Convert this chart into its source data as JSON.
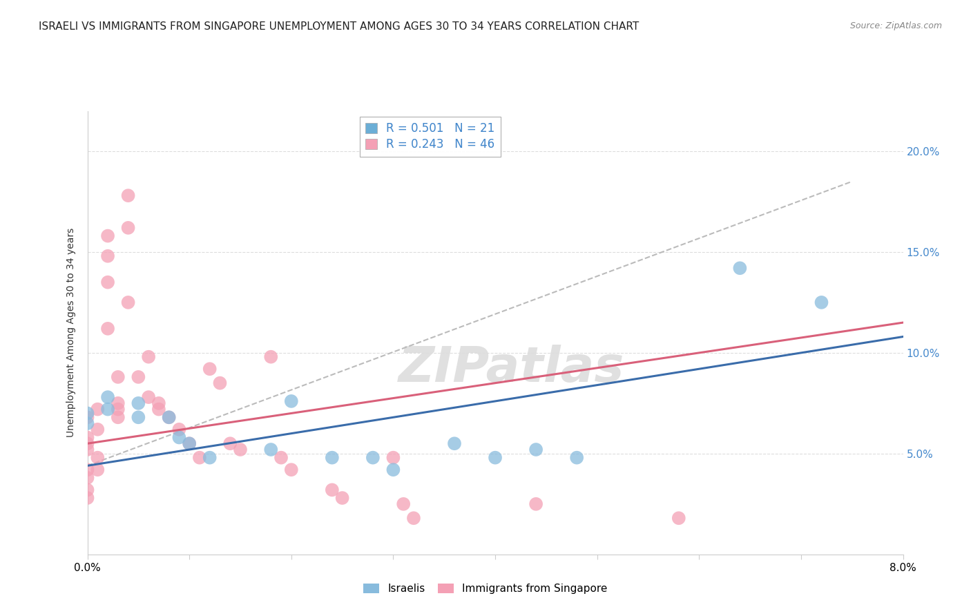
{
  "title": "ISRAELI VS IMMIGRANTS FROM SINGAPORE UNEMPLOYMENT AMONG AGES 30 TO 34 YEARS CORRELATION CHART",
  "source": "Source: ZipAtlas.com",
  "ylabel": "Unemployment Among Ages 30 to 34 years",
  "legend_items": [
    {
      "label": "R = 0.501   N = 21",
      "color": "#6baed6"
    },
    {
      "label": "R = 0.243   N = 46",
      "color": "#f4a0b5"
    }
  ],
  "legend_labels_bottom": [
    "Israelis",
    "Immigrants from Singapore"
  ],
  "xlim": [
    0.0,
    0.08
  ],
  "ylim": [
    0.0,
    0.22
  ],
  "xticks_show": [
    0.0,
    0.08
  ],
  "xticks_minor": [
    0.01,
    0.02,
    0.03,
    0.04,
    0.05,
    0.06,
    0.07
  ],
  "yticks_right": [
    0.05,
    0.1,
    0.15,
    0.2
  ],
  "watermark": "ZIPatlas",
  "blue_scatter": [
    [
      0.0,
      0.065
    ],
    [
      0.0,
      0.07
    ],
    [
      0.002,
      0.078
    ],
    [
      0.002,
      0.072
    ],
    [
      0.005,
      0.075
    ],
    [
      0.005,
      0.068
    ],
    [
      0.008,
      0.068
    ],
    [
      0.009,
      0.058
    ],
    [
      0.01,
      0.055
    ],
    [
      0.012,
      0.048
    ],
    [
      0.018,
      0.052
    ],
    [
      0.02,
      0.076
    ],
    [
      0.024,
      0.048
    ],
    [
      0.028,
      0.048
    ],
    [
      0.03,
      0.042
    ],
    [
      0.036,
      0.055
    ],
    [
      0.04,
      0.048
    ],
    [
      0.044,
      0.052
    ],
    [
      0.048,
      0.048
    ],
    [
      0.064,
      0.142
    ],
    [
      0.072,
      0.125
    ]
  ],
  "pink_scatter": [
    [
      0.0,
      0.068
    ],
    [
      0.0,
      0.055
    ],
    [
      0.0,
      0.058
    ],
    [
      0.0,
      0.052
    ],
    [
      0.0,
      0.042
    ],
    [
      0.0,
      0.038
    ],
    [
      0.0,
      0.032
    ],
    [
      0.0,
      0.028
    ],
    [
      0.001,
      0.072
    ],
    [
      0.001,
      0.062
    ],
    [
      0.001,
      0.048
    ],
    [
      0.001,
      0.042
    ],
    [
      0.002,
      0.158
    ],
    [
      0.002,
      0.148
    ],
    [
      0.002,
      0.135
    ],
    [
      0.002,
      0.112
    ],
    [
      0.003,
      0.088
    ],
    [
      0.003,
      0.075
    ],
    [
      0.003,
      0.072
    ],
    [
      0.003,
      0.068
    ],
    [
      0.004,
      0.178
    ],
    [
      0.004,
      0.162
    ],
    [
      0.004,
      0.125
    ],
    [
      0.005,
      0.088
    ],
    [
      0.006,
      0.098
    ],
    [
      0.006,
      0.078
    ],
    [
      0.007,
      0.075
    ],
    [
      0.007,
      0.072
    ],
    [
      0.008,
      0.068
    ],
    [
      0.009,
      0.062
    ],
    [
      0.01,
      0.055
    ],
    [
      0.011,
      0.048
    ],
    [
      0.012,
      0.092
    ],
    [
      0.013,
      0.085
    ],
    [
      0.014,
      0.055
    ],
    [
      0.015,
      0.052
    ],
    [
      0.018,
      0.098
    ],
    [
      0.019,
      0.048
    ],
    [
      0.02,
      0.042
    ],
    [
      0.024,
      0.032
    ],
    [
      0.025,
      0.028
    ],
    [
      0.03,
      0.048
    ],
    [
      0.031,
      0.025
    ],
    [
      0.032,
      0.018
    ],
    [
      0.044,
      0.025
    ],
    [
      0.058,
      0.018
    ]
  ],
  "blue_line": [
    [
      0.0,
      0.044
    ],
    [
      0.08,
      0.108
    ]
  ],
  "pink_line": [
    [
      0.0,
      0.055
    ],
    [
      0.08,
      0.115
    ]
  ],
  "gray_dashed_line": [
    [
      0.0,
      0.044
    ],
    [
      0.075,
      0.185
    ]
  ],
  "blue_color": "#3a6caa",
  "pink_color": "#d9607a",
  "scatter_blue_color": "#88bbdd",
  "scatter_pink_color": "#f4a0b5",
  "gray_line_color": "#bbbbbb",
  "grid_color": "#dddddd",
  "background_color": "#ffffff",
  "title_fontsize": 11,
  "source_fontsize": 9,
  "watermark_color": "#e0e0e0",
  "watermark_fontsize": 52,
  "right_axis_color": "#4488cc"
}
